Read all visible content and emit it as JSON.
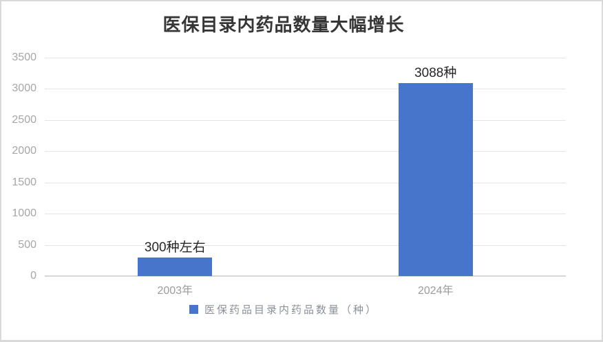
{
  "chart": {
    "title": "医保目录内药品数量大幅增长"
  },
  "legend": {
    "label": "医保药品目录内药品数量（种）"
  },
  "colors": {
    "bar": "#4775CB",
    "title_text": "#363636",
    "data_label_text": "#262626",
    "tick_text": "#a6a6a6",
    "legend_text": "#8a8f98",
    "gridline": "#e4e4e4",
    "axis_line": "#d6d6d6",
    "frame_border": "#d9d9d9"
  },
  "chart_data": {
    "type": "bar",
    "title": "医保目录内药品数量大幅增长",
    "categories": [
      "2003年",
      "2024年"
    ],
    "values": [
      300,
      3088
    ],
    "data_labels": [
      "300种左右",
      "3088种"
    ],
    "series": [
      {
        "name": "医保药品目录内药品数量（种）",
        "values": [
          300,
          3088
        ]
      }
    ],
    "xlabel": "",
    "ylabel": "",
    "ylim": [
      0,
      3500
    ],
    "yticks": [
      0,
      500,
      1000,
      1500,
      2000,
      2500,
      3000,
      3500
    ],
    "grid": true,
    "legend_position": "bottom",
    "bar_color": "#4775CB"
  }
}
